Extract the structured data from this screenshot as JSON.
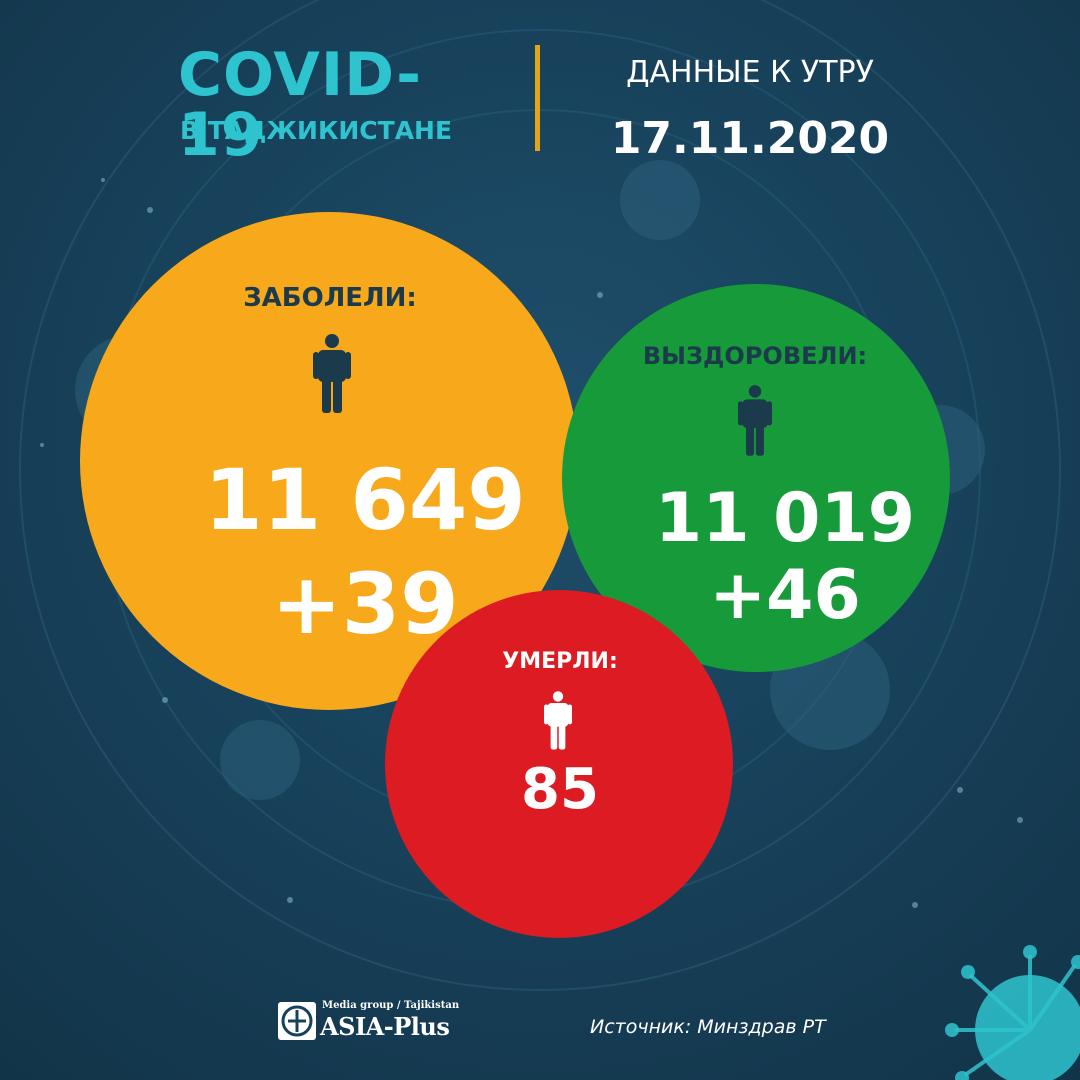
{
  "header": {
    "title": "COVID-19",
    "subtitle": "В ТАДЖИКИСТАНЕ",
    "date_label": "ДАННЫЕ К УТРУ",
    "date": "17.11.2020"
  },
  "stats": {
    "infected": {
      "label": "ЗАБОЛЕЛИ:",
      "total": "11 649",
      "delta": "+39",
      "color": "#f8a91b"
    },
    "recovered": {
      "label": "ВЫЗДОРОВЕЛИ:",
      "total": "11 019",
      "delta": "+46",
      "color": "#179a3a"
    },
    "deaths": {
      "label": "УМЕРЛИ:",
      "total": "85",
      "color": "#dd1b22"
    }
  },
  "icons": {
    "person": "person-icon",
    "logo": "asia-plus-logo-icon"
  },
  "footer": {
    "logo_media": "Media group / Tajikistan",
    "logo_name": "ASIA-Plus",
    "source": "Источник: Минздрав РТ"
  },
  "colors": {
    "background": "#18425c",
    "accent_teal": "#2ec4cf",
    "divider": "#e0a51a",
    "dark_text": "#1b3a4b"
  }
}
